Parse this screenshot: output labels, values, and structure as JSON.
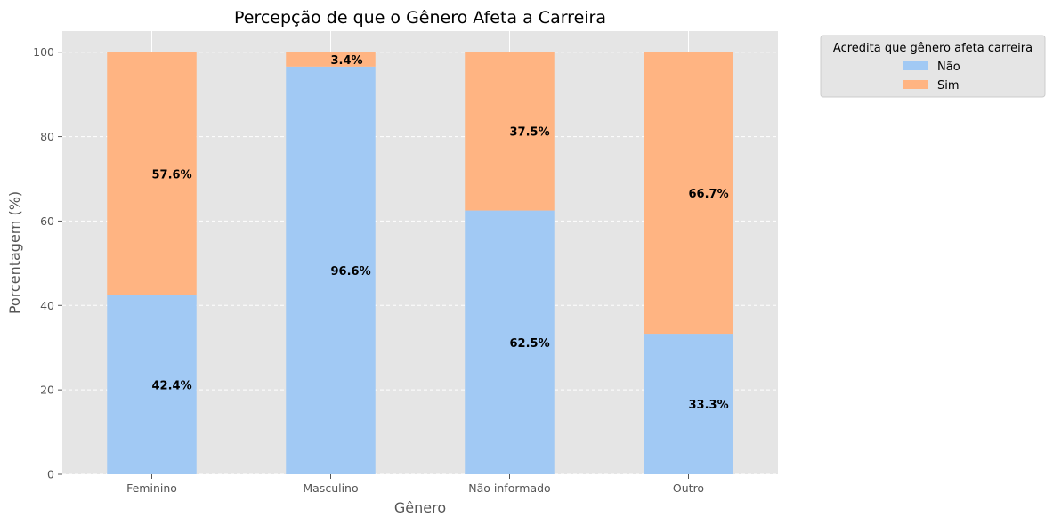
{
  "chart_data": {
    "type": "bar",
    "stacked": true,
    "title": "Percepção de que o Gênero Afeta a Carreira",
    "xlabel": "Gênero",
    "ylabel": "Porcentagem (%)",
    "categories": [
      "Feminino",
      "Masculino",
      "Não informado",
      "Outro"
    ],
    "series": [
      {
        "name": "Não",
        "color": "#a1c9f4",
        "values": [
          42.4,
          96.6,
          62.5,
          33.3
        ],
        "labels": [
          "42.4%",
          "96.6%",
          "62.5%",
          "33.3%"
        ]
      },
      {
        "name": "Sim",
        "color": "#ffb482",
        "values": [
          57.6,
          3.4,
          37.5,
          66.7
        ],
        "labels": [
          "57.6%",
          "3.4%",
          "37.5%",
          "66.7%"
        ]
      }
    ],
    "ylim": [
      0,
      105
    ],
    "yticks": [
      "0",
      "20",
      "40",
      "60",
      "80",
      "100"
    ],
    "grid": true,
    "legend": {
      "title": "Acredita que gênero afeta carreira",
      "placement": "outside upper right"
    },
    "colors": {
      "plot_background": "#e5e5e5",
      "grid": "#ffffff"
    }
  }
}
